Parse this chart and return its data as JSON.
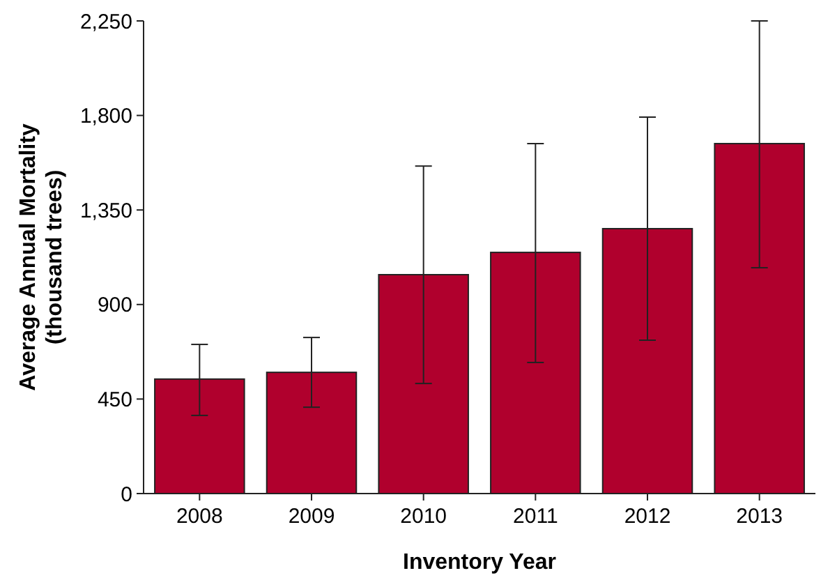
{
  "chart_data": {
    "type": "bar",
    "xlabel": "Inventory Year",
    "ylabel": "Average Annual Mortality\n(thousand trees)",
    "categories": [
      "2008",
      "2009",
      "2010",
      "2011",
      "2012",
      "2013"
    ],
    "values": [
      545,
      577,
      1042,
      1148,
      1261,
      1666
    ],
    "errors": [
      [
        372,
        710
      ],
      [
        411,
        743
      ],
      [
        524,
        1559
      ],
      [
        624,
        1666
      ],
      [
        730,
        1792
      ],
      [
        1075,
        2250
      ]
    ],
    "color": "#b0002d",
    "ylim": [
      0,
      2250
    ],
    "yticks": [
      0,
      {
        "value": 450,
        "label": "450"
      },
      {
        "value": 900,
        "label": "900"
      },
      {
        "value": 1350,
        "label": "1,350"
      },
      {
        "value": 1800,
        "label": "1,800"
      },
      {
        "value": 2250,
        "label": "2,250"
      }
    ],
    "grid": false
  }
}
